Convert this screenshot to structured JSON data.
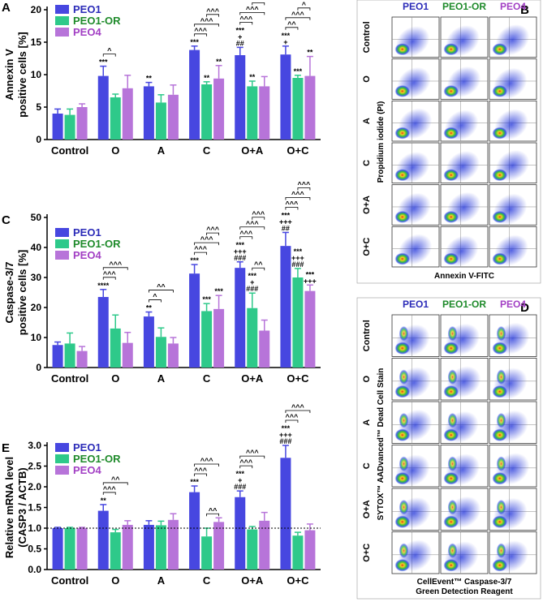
{
  "chart_data": [
    {
      "type": "bar",
      "panel": "A",
      "y_title": [
        "Annexin V",
        "positive cells [%]"
      ],
      "categories": [
        "Control",
        "O",
        "A",
        "C",
        "O+A",
        "O+C"
      ],
      "ylim": [
        0,
        20
      ],
      "yticks": [
        0,
        5,
        10,
        15,
        20
      ],
      "series": [
        {
          "name": "PEO1",
          "color": "#4747e0",
          "text_color": "#2b2bb8",
          "values": [
            4.0,
            9.8,
            8.2,
            13.8,
            13.0,
            13.1
          ],
          "errors": [
            0.7,
            1.5,
            0.6,
            0.6,
            1.2,
            1.3
          ],
          "stars": [
            null,
            [
              "***"
            ],
            [
              "**"
            ],
            [
              "***"
            ],
            [
              "***",
              "+",
              "##"
            ],
            [
              "***",
              "+"
            ]
          ]
        },
        {
          "name": "PEO1-OR",
          "color": "#2ec98a",
          "text_color": "#1e8a2a",
          "values": [
            3.8,
            6.5,
            5.7,
            8.5,
            8.2,
            9.5
          ],
          "errors": [
            0.9,
            0.5,
            1.2,
            0.4,
            0.8,
            0.4
          ],
          "stars": [
            null,
            null,
            null,
            [
              "**"
            ],
            [
              "**"
            ],
            [
              "***"
            ]
          ]
        },
        {
          "name": "PEO4",
          "color": "#b774d9",
          "text_color": "#a23fc4",
          "values": [
            5.0,
            7.9,
            6.9,
            9.4,
            8.2,
            9.8
          ],
          "errors": [
            0.5,
            2.0,
            1.5,
            2.0,
            1.5,
            3.0
          ],
          "stars": [
            null,
            null,
            null,
            [
              "**"
            ],
            null,
            [
              "**"
            ]
          ]
        }
      ],
      "brackets": [
        {
          "category": "O",
          "from": "PEO1",
          "to": "PEO1-OR",
          "label": "^"
        },
        {
          "category": "C",
          "from": "PEO1",
          "to": "PEO1-OR",
          "label": "^^^"
        },
        {
          "category": "C",
          "from": "PEO1",
          "to": "PEO4",
          "label": "^^^"
        },
        {
          "category": "C",
          "from": "PEO1-OR",
          "to": "PEO4",
          "label": "^^^"
        },
        {
          "category": "O+A",
          "from": "PEO1",
          "to": "PEO1-OR",
          "label": "^^^"
        },
        {
          "category": "O+A",
          "from": "PEO1",
          "to": "PEO4",
          "label": "^^^"
        },
        {
          "category": "O+A",
          "from": "PEO1-OR",
          "to": "PEO4",
          "label": "^^^"
        },
        {
          "category": "O+C",
          "from": "PEO1",
          "to": "PEO1-OR",
          "label": "^^"
        },
        {
          "category": "O+C",
          "from": "PEO1",
          "to": "PEO4",
          "label": "^^^"
        },
        {
          "category": "O+C",
          "from": "PEO1-OR",
          "to": "PEO4",
          "label": "^"
        }
      ]
    },
    {
      "type": "bar",
      "panel": "C",
      "y_title": [
        "Caspase-3/7",
        "positive cells [%]"
      ],
      "categories": [
        "Control",
        "O",
        "A",
        "C",
        "O+A",
        "O+C"
      ],
      "ylim": [
        0,
        50
      ],
      "yticks": [
        0,
        10,
        20,
        30,
        40,
        50
      ],
      "series": [
        {
          "name": "PEO1",
          "color": "#4747e0",
          "text_color": "#2b2bb8",
          "values": [
            7.5,
            23.5,
            17.0,
            31.3,
            33.2,
            40.5
          ],
          "errors": [
            1.0,
            2.5,
            1.5,
            3.0,
            2.0,
            4.5
          ],
          "stars": [
            null,
            [
              "****"
            ],
            [
              "**"
            ],
            [
              "***"
            ],
            [
              "***",
              "+++",
              "###"
            ],
            [
              "***",
              "+++",
              "##"
            ]
          ]
        },
        {
          "name": "PEO1-OR",
          "color": "#2ec98a",
          "text_color": "#1e8a2a",
          "values": [
            8.0,
            13.0,
            10.2,
            18.8,
            19.8,
            30.0
          ],
          "errors": [
            3.5,
            4.5,
            3.0,
            2.5,
            5.0,
            3.0
          ],
          "stars": [
            null,
            null,
            null,
            [
              "***"
            ],
            [
              "***",
              "+",
              "###"
            ],
            [
              "***",
              "+++",
              "###"
            ]
          ]
        },
        {
          "name": "PEO4",
          "color": "#b774d9",
          "text_color": "#a23fc4",
          "values": [
            5.5,
            8.2,
            8.0,
            19.5,
            12.3,
            25.5
          ],
          "errors": [
            1.5,
            3.5,
            2.0,
            4.5,
            3.5,
            2.0
          ],
          "stars": [
            null,
            null,
            null,
            [
              "***"
            ],
            null,
            [
              "***",
              "+++"
            ]
          ]
        }
      ],
      "brackets": [
        {
          "category": "O",
          "from": "PEO1",
          "to": "PEO1-OR",
          "label": "^^^"
        },
        {
          "category": "O",
          "from": "PEO1",
          "to": "PEO4",
          "label": "^^^"
        },
        {
          "category": "A",
          "from": "PEO1",
          "to": "PEO1-OR",
          "label": "^"
        },
        {
          "category": "A",
          "from": "PEO1",
          "to": "PEO4",
          "label": "^^"
        },
        {
          "category": "C",
          "from": "PEO1",
          "to": "PEO1-OR",
          "label": "^^^"
        },
        {
          "category": "C",
          "from": "PEO1",
          "to": "PEO4",
          "label": "^^^"
        },
        {
          "category": "C",
          "from": "PEO1-OR",
          "to": "PEO4",
          "label": "^^^"
        },
        {
          "category": "O+A",
          "from": "PEO1-OR",
          "to": "PEO4",
          "label": "^^"
        },
        {
          "category": "O+A",
          "from": "PEO1",
          "to": "PEO1-OR",
          "label": "^^^"
        },
        {
          "category": "O+A",
          "from": "PEO1",
          "to": "PEO4",
          "label": "^^^"
        },
        {
          "category": "O+A",
          "from": "PEO1-OR",
          "to": "PEO4",
          "label": "^^^"
        },
        {
          "category": "O+C",
          "from": "PEO1",
          "to": "PEO1-OR",
          "label": "^^^"
        },
        {
          "category": "O+C",
          "from": "PEO1",
          "to": "PEO4",
          "label": "^^^"
        },
        {
          "category": "O+C",
          "from": "PEO1-OR",
          "to": "PEO4",
          "label": "^^^"
        }
      ]
    },
    {
      "type": "bar",
      "panel": "E",
      "y_title": [
        "Relative mRNA level",
        "(CASP3 / ACTB)"
      ],
      "categories": [
        "Control",
        "O",
        "A",
        "C",
        "O+A",
        "O+C"
      ],
      "ylim": [
        0,
        3
      ],
      "yticks": [
        {
          "value": 0,
          "label": "0.0"
        },
        0.5,
        {
          "value": 1,
          "label": "1.0"
        },
        1.5,
        {
          "value": 2,
          "label": "2.0"
        },
        2.5,
        {
          "value": 3,
          "label": "3.0"
        }
      ],
      "hline": 1,
      "series": [
        {
          "name": "PEO1",
          "color": "#4747e0",
          "text_color": "#2b2bb8",
          "values": [
            1.0,
            1.42,
            1.08,
            1.87,
            1.75,
            2.7
          ],
          "errors": [
            0.02,
            0.15,
            0.1,
            0.15,
            0.15,
            0.3
          ],
          "stars": [
            null,
            [
              "**"
            ],
            null,
            [
              "***"
            ],
            [
              "***",
              "+",
              "###"
            ],
            [
              "***",
              "+++",
              "###"
            ]
          ]
        },
        {
          "name": "PEO1-OR",
          "color": "#2ec98a",
          "text_color": "#1e8a2a",
          "values": [
            1.0,
            0.9,
            1.07,
            0.8,
            0.97,
            0.82
          ],
          "errors": [
            0.02,
            0.07,
            0.1,
            0.2,
            0.07,
            0.08
          ],
          "stars": [
            null,
            null,
            null,
            null,
            null,
            null
          ]
        },
        {
          "name": "PEO4",
          "color": "#b774d9",
          "text_color": "#a23fc4",
          "values": [
            1.0,
            1.08,
            1.2,
            1.15,
            1.18,
            0.95
          ],
          "errors": [
            0.02,
            0.1,
            0.15,
            0.1,
            0.2,
            0.15
          ],
          "stars": [
            null,
            null,
            null,
            null,
            null,
            null
          ]
        }
      ],
      "brackets": [
        {
          "category": "O",
          "from": "PEO1",
          "to": "PEO1-OR",
          "label": "^^^"
        },
        {
          "category": "O",
          "from": "PEO1",
          "to": "PEO4",
          "label": "^^"
        },
        {
          "category": "C",
          "from": "PEO1-OR",
          "to": "PEO4",
          "label": "^^"
        },
        {
          "category": "C",
          "from": "PEO1",
          "to": "PEO1-OR",
          "label": "^^^"
        },
        {
          "category": "C",
          "from": "PEO1",
          "to": "PEO4",
          "label": "^^^"
        },
        {
          "category": "O+A",
          "from": "PEO1",
          "to": "PEO1-OR",
          "label": "^^^"
        },
        {
          "category": "O+A",
          "from": "PEO1",
          "to": "PEO4",
          "label": "^^^"
        },
        {
          "category": "O+C",
          "from": "PEO1",
          "to": "PEO1-OR",
          "label": "^^^"
        },
        {
          "category": "O+C",
          "from": "PEO1",
          "to": "PEO4",
          "label": "^^^"
        }
      ]
    }
  ],
  "flow_panels": [
    {
      "panel": "B",
      "columns": [
        "PEO1",
        "PEO1-OR",
        "PEO4"
      ],
      "column_colors": [
        "#2b2bb8",
        "#1e8a2a",
        "#a23fc4"
      ],
      "rows": [
        "Control",
        "O",
        "A",
        "C",
        "O+A",
        "O+C"
      ],
      "y_title": "Propidium iodide (PI)",
      "x_title": [
        "Annexin V-FITC"
      ]
    },
    {
      "panel": "D",
      "columns": [
        "PEO1",
        "PEO1-OR",
        "PEO4"
      ],
      "column_colors": [
        "#2b2bb8",
        "#1e8a2a",
        "#a23fc4"
      ],
      "rows": [
        "Control",
        "O",
        "A",
        "C",
        "O+A",
        "O+C"
      ],
      "y_title": "SYTOX™ AADvanced™ Dead Cell Stain",
      "x_title": [
        "CellEvent™ Caspase-3/7",
        "Green Detection Reagent"
      ]
    }
  ]
}
